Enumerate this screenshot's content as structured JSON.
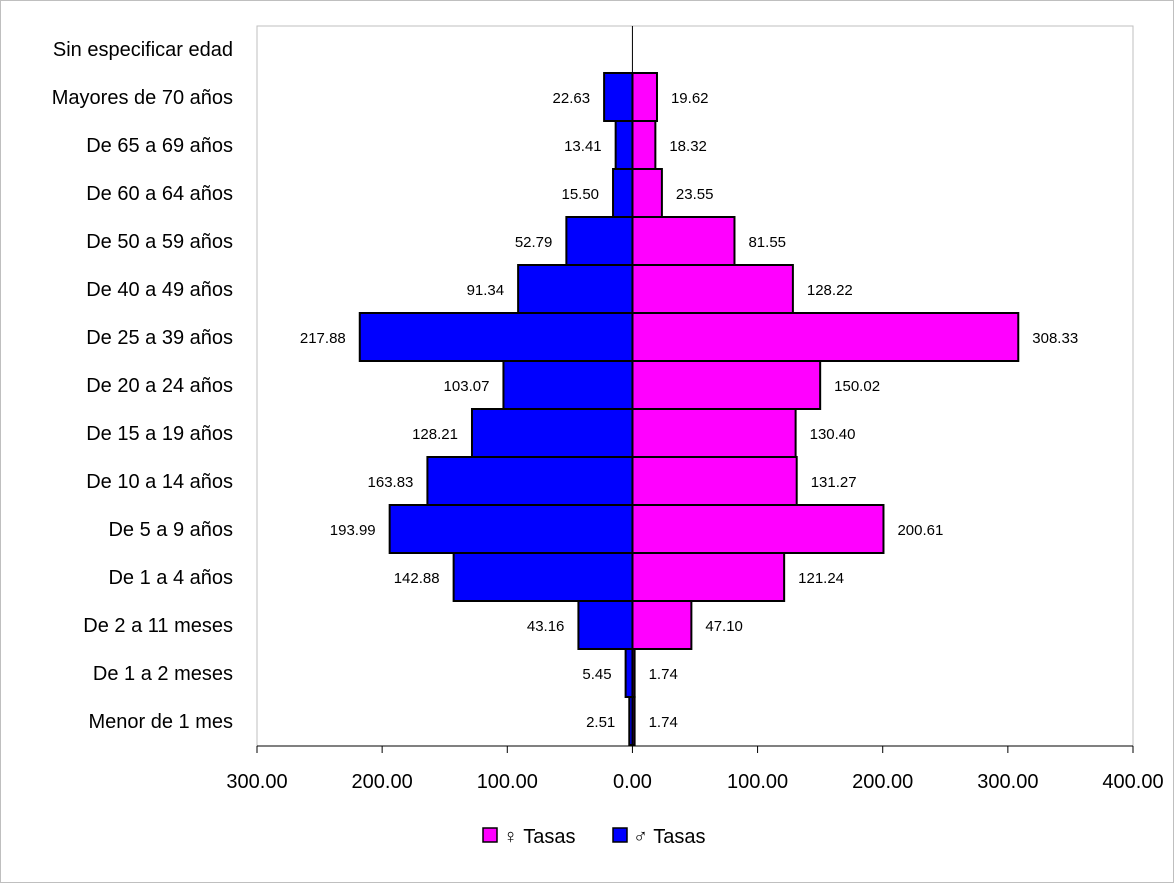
{
  "chart_data": {
    "type": "bar",
    "orientation": "horizontal",
    "layout": "population-pyramid",
    "title": "",
    "categories": [
      "Menor de 1 mes",
      "De 1 a 2 meses",
      "De 2 a 11 meses",
      "De 1 a 4 años",
      "De 5 a 9 años",
      "De 10 a 14 años",
      "De 15 a 19 años",
      "De 20 a 24 años",
      "De 25 a 39 años",
      "De 40 a 49 años",
      "De 50 a 59 años",
      "De 60 a 64 años",
      "De 65 a 69 años",
      "Mayores de 70 años",
      "Sin especificar edad"
    ],
    "series": [
      {
        "name": "♀ Tasas",
        "color": "#ff00ff",
        "side": "right",
        "values": [
          1.74,
          1.74,
          47.1,
          121.24,
          200.61,
          131.27,
          130.4,
          150.02,
          308.33,
          128.22,
          81.55,
          23.55,
          18.32,
          19.62,
          null
        ],
        "labels": [
          "1.74",
          "1.74",
          "47.10",
          "121.24",
          "200.61",
          "131.27",
          "130.40",
          "150.02",
          "308.33",
          "128.22",
          "81.55",
          "23.55",
          "18.32",
          "19.62",
          ""
        ]
      },
      {
        "name": "♂ Tasas",
        "color": "#0000ff",
        "side": "left",
        "values": [
          2.51,
          5.45,
          43.16,
          142.88,
          193.99,
          163.83,
          128.21,
          103.07,
          217.88,
          91.34,
          52.79,
          15.5,
          13.41,
          22.63,
          null
        ],
        "labels": [
          "2.51",
          "5.45",
          "43.16",
          "142.88",
          "193.99",
          "163.83",
          "128.21",
          "103.07",
          "217.88",
          "91.34",
          "52.79",
          "15.50",
          "13.41",
          "22.63",
          ""
        ]
      }
    ],
    "xlim": [
      -300,
      400
    ],
    "x_ticks": [
      -300,
      -200,
      -100,
      0,
      100,
      200,
      300,
      400
    ],
    "x_tick_labels": [
      "300.00",
      "200.00",
      "100.00",
      "0.00",
      "100.00",
      "200.00",
      "300.00",
      "400.00"
    ],
    "xlabel": "",
    "ylabel": "",
    "grid": false,
    "legend_position": "bottom"
  }
}
